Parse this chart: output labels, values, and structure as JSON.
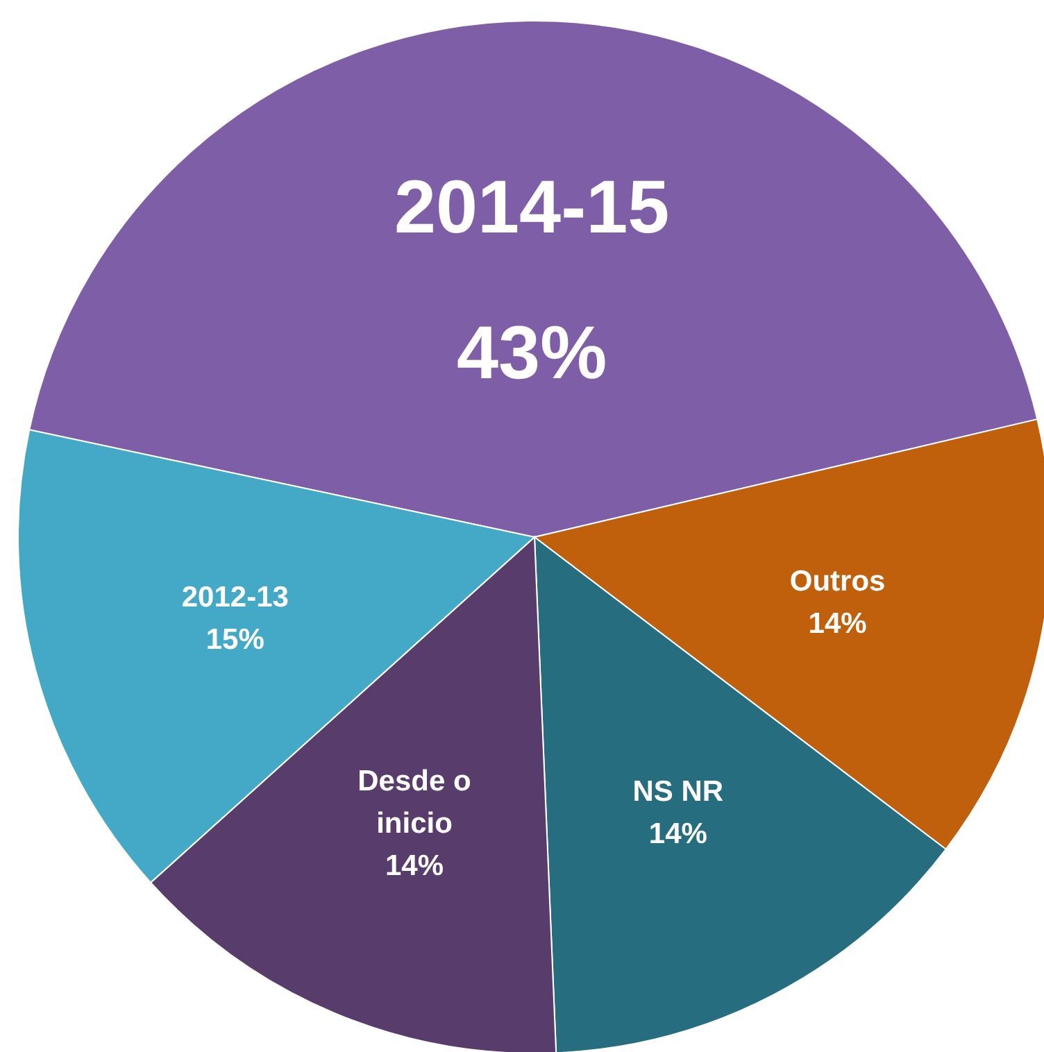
{
  "chart_data": {
    "type": "pie",
    "categories": [
      "2014-15",
      "Outros",
      "NS NR",
      "Desde o inicio",
      "2012-13"
    ],
    "values": [
      43,
      14,
      14,
      14,
      15
    ],
    "value_labels": [
      "43%",
      "14%",
      "14%",
      "14%",
      "15%"
    ],
    "colors": [
      "#7e5ea6",
      "#c0600c",
      "#256d7f",
      "#583d6c",
      "#44a9c6"
    ]
  }
}
